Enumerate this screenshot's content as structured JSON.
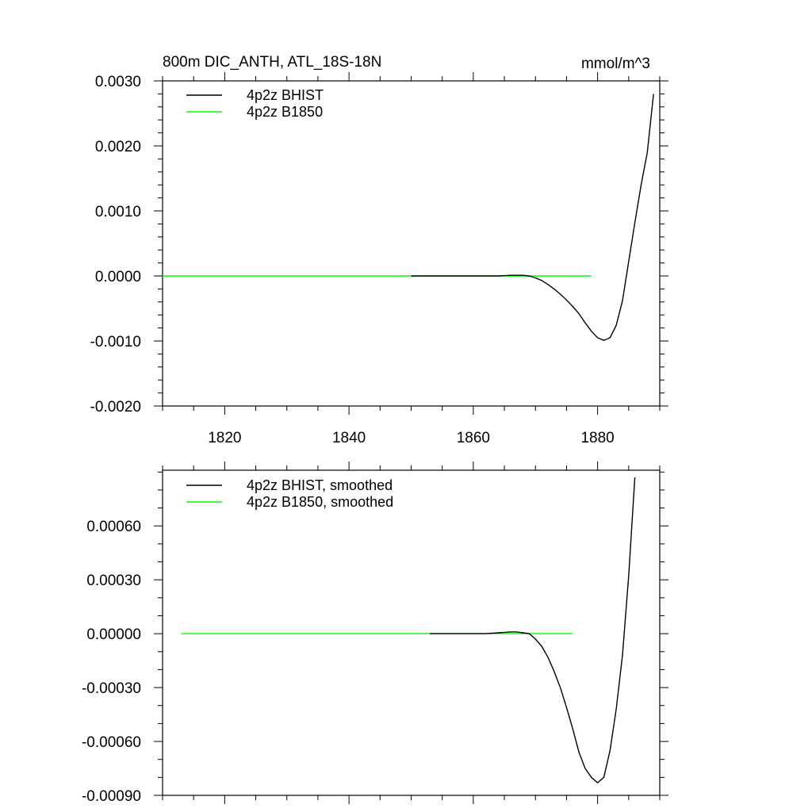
{
  "chart_data": [
    {
      "type": "line",
      "title": "800m DIC_ANTH, ATL_18S-18N",
      "units": "mmol/m^3",
      "xlim": [
        1810,
        1890
      ],
      "ylim": [
        -0.002,
        0.003
      ],
      "xticks": [
        1820,
        1840,
        1860,
        1880
      ],
      "xtick_labels": [
        "1820",
        "1840",
        "1860",
        "1880"
      ],
      "yticks": [
        -0.002,
        -0.001,
        0.0,
        0.001,
        0.002,
        0.003
      ],
      "ytick_labels": [
        "-0.0020",
        "-0.0010",
        "0.0000",
        "0.0010",
        "0.0020",
        "0.0030"
      ],
      "legend_position": "top-left",
      "series": [
        {
          "name": "4p2z BHIST",
          "color": "#000000",
          "x": [
            1850,
            1855,
            1860,
            1864,
            1866,
            1868,
            1869,
            1870,
            1871,
            1872,
            1873,
            1874,
            1875,
            1876,
            1877,
            1878,
            1879,
            1880,
            1881,
            1882,
            1883,
            1884,
            1885,
            1886,
            1887,
            1888,
            1889
          ],
          "y": [
            0.0,
            0.0,
            0.0,
            0.0,
            1e-05,
            1e-05,
            0.0,
            -3e-05,
            -7e-05,
            -0.00013,
            -0.0002,
            -0.00028,
            -0.00037,
            -0.00047,
            -0.00058,
            -0.00072,
            -0.00085,
            -0.00095,
            -0.00099,
            -0.00095,
            -0.00076,
            -0.00038,
            0.00022,
            0.00082,
            0.0014,
            0.0019,
            0.0028
          ]
        },
        {
          "name": "4p2z B1850",
          "color": "#00ff00",
          "x": [
            1810,
            1879
          ],
          "y": [
            0.0,
            0.0
          ]
        }
      ]
    },
    {
      "type": "line",
      "xlim": [
        1810,
        1890
      ],
      "ylim": [
        -0.0009,
        0.00091
      ],
      "xticks": [
        1820,
        1840,
        1860,
        1880
      ],
      "yticks": [
        -0.0009,
        -0.0006,
        -0.0003,
        0.0,
        0.0003,
        0.0006
      ],
      "ytick_labels": [
        "-0.00090",
        "-0.00060",
        "-0.00030",
        "0.00000",
        "0.00030",
        "0.00060"
      ],
      "legend_position": "top-left",
      "series": [
        {
          "name": "4p2z BHIST, smoothed",
          "color": "#000000",
          "x": [
            1853,
            1858,
            1862,
            1864,
            1866,
            1867,
            1868,
            1869,
            1870,
            1871,
            1872,
            1873,
            1874,
            1875,
            1876,
            1877,
            1878,
            1879,
            1880,
            1881,
            1882,
            1883,
            1884,
            1885,
            1886
          ],
          "y": [
            0.0,
            0.0,
            0.0,
            5e-06,
            1e-05,
            1e-05,
            5e-06,
            0.0,
            -3e-05,
            -7e-05,
            -0.00013,
            -0.00021,
            -0.0003,
            -0.00041,
            -0.00053,
            -0.00066,
            -0.00075,
            -0.0008,
            -0.00083,
            -0.0008,
            -0.00065,
            -0.00042,
            -0.00012,
            0.00032,
            0.00087
          ]
        },
        {
          "name": "4p2z B1850, smoothed",
          "color": "#00ff00",
          "x": [
            1813,
            1876
          ],
          "y": [
            0.0,
            0.0
          ]
        }
      ]
    }
  ]
}
